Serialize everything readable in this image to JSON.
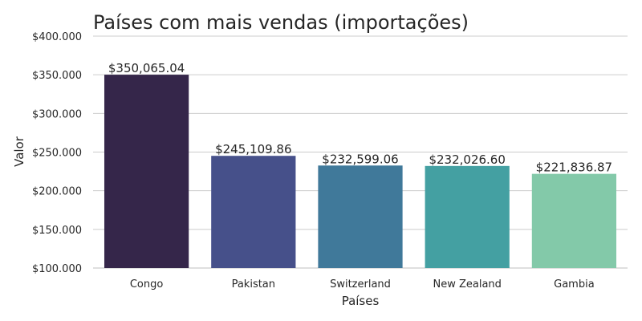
{
  "chart_data": {
    "type": "bar",
    "title": "Países com mais vendas (importações)",
    "xlabel": "Países",
    "ylabel": "Valor",
    "categories": [
      "Congo",
      "Pakistan",
      "Switzerland",
      "New Zealand",
      "Gambia"
    ],
    "values": [
      350065.04,
      245109.86,
      232599.06,
      232026.6,
      221836.87
    ],
    "value_labels": [
      "$350,065.04",
      "$245,109.86",
      "$232,599.06",
      "$232,026.60",
      "$221,836.87"
    ],
    "ylim": [
      100000,
      400000
    ],
    "yticks": [
      100000,
      150000,
      200000,
      250000,
      300000,
      350000,
      400000
    ],
    "ytick_labels": [
      "$100.000",
      "$150.000",
      "$200.000",
      "$250.000",
      "$300.000",
      "$350.000",
      "$400.000"
    ],
    "colors": [
      "#35264a",
      "#46508a",
      "#40799a",
      "#44a0a2",
      "#83c9a9"
    ],
    "grid": "horizontal",
    "legend": "none"
  }
}
